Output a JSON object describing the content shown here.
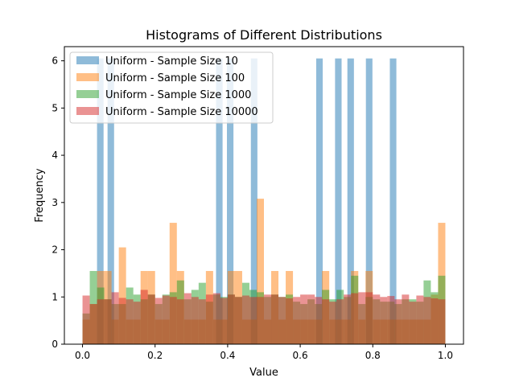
{
  "chart_data": {
    "type": "bar",
    "title": "Histograms of Different Distributions",
    "xlabel": "Value",
    "ylabel": "Frequency",
    "xlim": [
      -0.05,
      1.05
    ],
    "ylim": [
      0,
      6.3
    ],
    "xticks": [
      "0.0",
      "0.2",
      "0.4",
      "0.6",
      "0.8",
      "1.0"
    ],
    "xtick_values": [
      0.0,
      0.2,
      0.4,
      0.6,
      0.8,
      1.0
    ],
    "yticks": [
      "0",
      "1",
      "2",
      "3",
      "4",
      "5",
      "6"
    ],
    "ytick_values": [
      0,
      1,
      2,
      3,
      4,
      5,
      6
    ],
    "bins": 50,
    "bin_width": 0.02,
    "alpha": 0.5,
    "grid": false,
    "legend_position": "top-left",
    "series": [
      {
        "name": "Uniform - Sample Size 10",
        "color": "#1f77b4",
        "bin_start": 0.0306,
        "bin_width": 0.0066,
        "values": [
          6.05,
          0,
          0,
          0,
          0,
          6.05,
          0,
          0,
          0,
          0,
          0,
          0,
          0,
          0,
          0,
          0,
          0,
          0,
          0,
          0,
          0,
          0,
          0,
          0,
          0,
          0,
          0,
          0,
          0,
          0,
          0,
          0,
          0,
          0,
          0,
          0,
          0,
          0,
          0,
          0,
          0,
          0,
          0,
          0,
          0,
          0,
          0,
          0,
          0,
          0,
          0,
          0,
          0,
          0,
          0,
          0,
          0,
          0,
          0,
          0,
          0,
          0,
          0,
          0,
          0,
          0,
          0,
          0,
          0,
          0,
          0,
          0,
          0,
          0,
          0,
          0,
          0,
          0,
          0,
          0,
          0,
          0,
          0,
          0,
          0,
          0,
          0,
          0,
          0,
          0,
          0,
          0,
          0,
          0,
          0,
          0,
          0,
          0,
          0,
          0,
          0,
          0,
          0,
          0,
          0,
          0,
          0,
          0,
          0,
          0,
          0,
          0,
          0,
          0,
          0,
          0,
          0,
          0,
          0,
          0,
          0,
          0,
          0,
          0,
          0,
          0,
          0,
          0,
          0,
          0,
          0,
          0,
          0,
          0,
          0,
          0,
          0,
          0,
          0,
          0,
          0,
          0,
          0,
          0,
          0,
          0,
          0,
          0,
          0,
          0,
          0,
          0,
          0,
          0,
          0,
          0,
          0,
          0,
          0,
          0
        ],
        "bars": [
          {
            "x": 0.049,
            "h": 6.05
          },
          {
            "x": 0.078,
            "h": 6.05
          },
          {
            "x": 0.377,
            "h": 6.05
          },
          {
            "x": 0.407,
            "h": 6.05
          },
          {
            "x": 0.473,
            "h": 6.05
          },
          {
            "x": 0.653,
            "h": 6.05
          },
          {
            "x": 0.705,
            "h": 6.05
          },
          {
            "x": 0.739,
            "h": 6.05
          },
          {
            "x": 0.79,
            "h": 6.05
          },
          {
            "x": 0.856,
            "h": 6.05
          }
        ]
      },
      {
        "name": "Uniform - Sample Size 100",
        "color": "#ff7f0e",
        "bin_start": 0.0,
        "bin_width": 0.02,
        "values": [
          0.52,
          0.85,
          1.55,
          1.55,
          0.52,
          2.05,
          0.52,
          0.52,
          1.55,
          1.55,
          0.52,
          0.52,
          2.57,
          1.55,
          0.52,
          0.52,
          0.52,
          1.55,
          0.52,
          0.52,
          1.55,
          1.55,
          0.52,
          0.52,
          3.08,
          0.52,
          1.55,
          0.52,
          1.55,
          0.52,
          0.52,
          0.52,
          0.52,
          1.55,
          0.52,
          0.52,
          0.52,
          1.55,
          0.52,
          1.55,
          0.52,
          0.52,
          0.52,
          0.52,
          0.52,
          0.52,
          0.52,
          0.52,
          1.05,
          2.57
        ]
      },
      {
        "name": "Uniform - Sample Size 1000",
        "color": "#2ca02c",
        "bin_start": 0.0,
        "bin_width": 0.02,
        "values": [
          0.65,
          1.55,
          1.2,
          0.95,
          0.85,
          0.85,
          1.2,
          1.05,
          0.95,
          1.05,
          0.85,
          1.05,
          1.1,
          1.35,
          0.95,
          1.15,
          1.3,
          0.9,
          1.05,
          1.0,
          1.05,
          1.0,
          1.3,
          1.15,
          1.1,
          1.0,
          1.05,
          1.0,
          1.05,
          0.9,
          0.85,
          0.95,
          0.85,
          1.15,
          0.95,
          1.15,
          1.0,
          1.45,
          0.85,
          1.0,
          0.95,
          0.9,
          0.9,
          0.85,
          0.95,
          0.95,
          0.9,
          1.35,
          1.1,
          1.45
        ]
      },
      {
        "name": "Uniform - Sample Size 10000",
        "color": "#d62728",
        "bin_start": 0.0,
        "bin_width": 0.02,
        "values": [
          1.03,
          0.85,
          0.95,
          0.95,
          1.1,
          0.98,
          0.95,
          0.9,
          1.15,
          1.05,
          0.98,
          1.03,
          1.0,
          0.95,
          1.08,
          1.0,
          0.95,
          1.05,
          1.08,
          0.98,
          1.05,
          1.0,
          1.03,
          1.0,
          1.0,
          1.05,
          1.05,
          1.0,
          0.97,
          1.0,
          1.05,
          1.05,
          1.0,
          0.95,
          0.9,
          0.95,
          1.05,
          1.08,
          1.1,
          1.1,
          1.05,
          1.0,
          1.02,
          0.95,
          1.05,
          0.9,
          1.03,
          1.0,
          0.97,
          0.95
        ]
      }
    ]
  }
}
